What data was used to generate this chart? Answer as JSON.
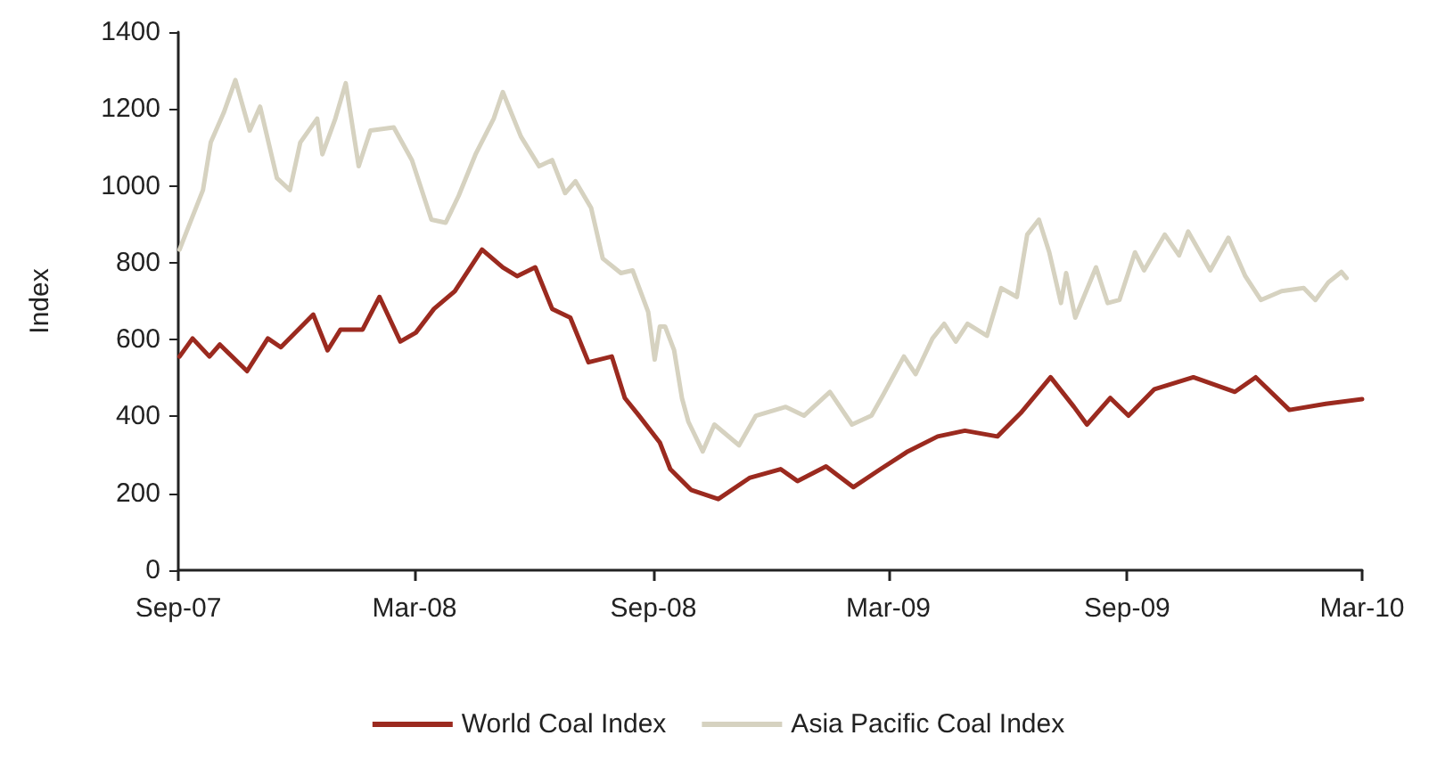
{
  "chart_data": {
    "type": "line",
    "ylabel": "Index",
    "legend": "bottom",
    "grid": false,
    "marker": "none",
    "line_style": "solid",
    "xlim": [
      "2007-09-01",
      "2010-03-01"
    ],
    "xticks": [
      {
        "value": "2007-09-01",
        "label": "Sep-07"
      },
      {
        "value": "2008-03-01",
        "label": "Mar-08"
      },
      {
        "value": "2008-09-01",
        "label": "Sep-08"
      },
      {
        "value": "2009-03-01",
        "label": "Mar-09"
      },
      {
        "value": "2009-09-01",
        "label": "Sep-09"
      },
      {
        "value": "2010-03-01",
        "label": "Mar-10"
      }
    ],
    "ylim": [
      0,
      1400
    ],
    "yticks": [
      0,
      200,
      400,
      600,
      800,
      1000,
      1200,
      1400
    ],
    "series": [
      {
        "name": "World Coal Index",
        "color": "#9b2a1f",
        "x": [
          "2007-09-02",
          "2007-09-12",
          "2007-09-25",
          "2007-10-03",
          "2007-10-24",
          "2007-11-09",
          "2007-11-19",
          "2007-12-14",
          "2007-12-25",
          "2008-01-04",
          "2008-01-21",
          "2008-02-03",
          "2008-02-19",
          "2008-03-02",
          "2008-03-16",
          "2008-04-01",
          "2008-04-22",
          "2008-05-08",
          "2008-05-19",
          "2008-06-02",
          "2008-06-15",
          "2008-06-29",
          "2008-07-13",
          "2008-07-31",
          "2008-08-10",
          "2008-08-21",
          "2008-09-06",
          "2008-09-14",
          "2008-09-30",
          "2008-10-21",
          "2008-11-14",
          "2008-12-08",
          "2008-12-21",
          "2009-01-12",
          "2009-02-02",
          "2009-02-23",
          "2009-03-16",
          "2009-04-08",
          "2009-04-29",
          "2009-05-24",
          "2009-06-11",
          "2009-07-04",
          "2009-07-22",
          "2009-08-01",
          "2009-08-19",
          "2009-09-02",
          "2009-09-22",
          "2009-10-22",
          "2009-11-23",
          "2009-12-09",
          "2010-01-04",
          "2010-02-01",
          "2010-03-01"
        ],
        "values": [
          556,
          603,
          556,
          587,
          518,
          603,
          580,
          665,
          572,
          626,
          626,
          711,
          595,
          618,
          680,
          726,
          834,
          788,
          765,
          788,
          680,
          657,
          541,
          556,
          448,
          402,
          332,
          263,
          209,
          185,
          240,
          263,
          232,
          270,
          216,
          263,
          309,
          348,
          363,
          348,
          409,
          502,
          425,
          379,
          448,
          402,
          471,
          502,
          464,
          502,
          417,
          433,
          445
        ]
      },
      {
        "name": "Asia Pacific Coal Index",
        "color": "#d6d2c0",
        "x": [
          "2007-09-02",
          "2007-09-11",
          "2007-09-20",
          "2007-09-26",
          "2007-10-06",
          "2007-10-15",
          "2007-10-26",
          "2007-11-03",
          "2007-11-16",
          "2007-11-26",
          "2007-12-04",
          "2007-12-17",
          "2007-12-21",
          "2007-12-31",
          "2008-01-08",
          "2008-01-18",
          "2008-01-27",
          "2008-02-14",
          "2008-02-28",
          "2008-03-14",
          "2008-03-25",
          "2008-04-04",
          "2008-04-17",
          "2008-05-01",
          "2008-05-08",
          "2008-05-22",
          "2008-06-05",
          "2008-06-15",
          "2008-06-25",
          "2008-07-03",
          "2008-07-15",
          "2008-07-24",
          "2008-08-07",
          "2008-08-16",
          "2008-08-28",
          "2008-09-02",
          "2008-09-06",
          "2008-09-10",
          "2008-09-17",
          "2008-09-23",
          "2008-09-28",
          "2008-10-09",
          "2008-10-18",
          "2008-11-06",
          "2008-11-19",
          "2008-12-12",
          "2008-12-26",
          "2009-01-15",
          "2009-02-01",
          "2009-02-16",
          "2009-02-25",
          "2009-03-13",
          "2009-03-22",
          "2009-04-04",
          "2009-04-13",
          "2009-04-22",
          "2009-05-01",
          "2009-05-16",
          "2009-05-27",
          "2009-06-08",
          "2009-06-16",
          "2009-06-25",
          "2009-07-03",
          "2009-07-12",
          "2009-07-16",
          "2009-07-23",
          "2009-08-08",
          "2009-08-17",
          "2009-08-26",
          "2009-09-07",
          "2009-09-14",
          "2009-09-30",
          "2009-10-11",
          "2009-10-18",
          "2009-11-04",
          "2009-11-18",
          "2009-12-01",
          "2009-12-13",
          "2009-12-29",
          "2010-01-15",
          "2010-01-24",
          "2010-02-03",
          "2010-02-13",
          "2010-02-17"
        ],
        "values": [
          834,
          912,
          989,
          1113,
          1190,
          1275,
          1144,
          1206,
          1020,
          989,
          1113,
          1175,
          1082,
          1175,
          1267,
          1051,
          1144,
          1152,
          1067,
          912,
          904,
          974,
          1082,
          1175,
          1244,
          1128,
          1051,
          1067,
          981,
          1012,
          943,
          811,
          773,
          780,
          672,
          548,
          634,
          634,
          572,
          448,
          386,
          309,
          379,
          325,
          402,
          425,
          402,
          464,
          379,
          402,
          456,
          556,
          510,
          603,
          641,
          595,
          641,
          610,
          734,
          711,
          873,
          912,
          827,
          695,
          773,
          657,
          788,
          695,
          703,
          827,
          780,
          873,
          819,
          881,
          780,
          865,
          765,
          703,
          726,
          734,
          703,
          749,
          776,
          760
        ]
      }
    ]
  }
}
